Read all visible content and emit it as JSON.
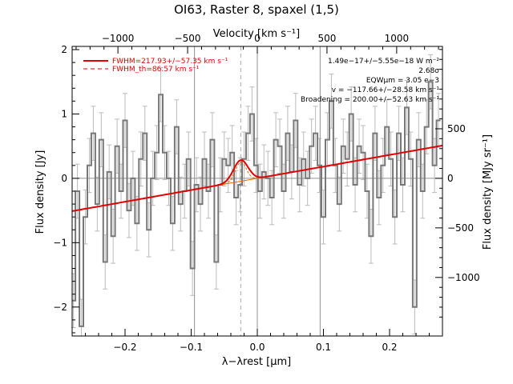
{
  "chart_data": {
    "type": "line",
    "title": "OI63, Raster 8, spaxel (1,5)",
    "xlabel": "λ−λrest [μm]",
    "ylabel": "Flux density [Jy]",
    "x2label": "Velocity [km s⁻¹]",
    "y2label": "Flux density [MJy sr⁻¹]",
    "xlim": [
      -0.28,
      0.28
    ],
    "ylim": [
      -2.45,
      2.05
    ],
    "x_ticks": [
      -0.2,
      -0.1,
      0.0,
      0.1,
      0.2
    ],
    "x_tick_labels": [
      "−0.2",
      "−0.1",
      "0.0",
      "0.1",
      "0.2"
    ],
    "y_ticks": [
      -2,
      -1,
      0,
      1,
      2
    ],
    "y_tick_labels": [
      "−2",
      "−1",
      "0",
      "1",
      "2"
    ],
    "x2_ticks": [
      -1000,
      -500,
      0,
      500,
      1000
    ],
    "x2_tick_labels": [
      "−1000",
      "−500",
      "0",
      "500",
      "1000"
    ],
    "y2_ticks": [
      -1000,
      -500,
      0,
      500
    ],
    "y2_tick_labels": [
      "−1000",
      "−500",
      "0",
      "500"
    ],
    "vlines": [
      -0.095,
      0.0,
      0.095
    ],
    "dashed_vline": -0.025,
    "legend": [
      {
        "label": "FWHM=217.93+/−57.35 km s⁻¹",
        "style": "solid",
        "color": "#e00000"
      },
      {
        "label": "FWHM_th=86.57 km s⁻¹",
        "style": "dashed",
        "color": "#e00000"
      }
    ],
    "annotations": [
      "1.49e−17+/−5.55e−18 W m⁻²",
      "2.68σ",
      "EQWμm = 3.05 e−3",
      "v = −117.66+/−28.58 km s⁻¹",
      "Broadening = 200.00+/−52.63 km s⁻¹"
    ],
    "series": [
      {
        "name": "Spectrum",
        "color": "#777777",
        "style": "steps",
        "x": [
          -0.278,
          -0.272,
          -0.266,
          -0.26,
          -0.254,
          -0.248,
          -0.242,
          -0.236,
          -0.23,
          -0.224,
          -0.218,
          -0.212,
          -0.206,
          -0.2,
          -0.194,
          -0.188,
          -0.182,
          -0.176,
          -0.17,
          -0.164,
          -0.158,
          -0.152,
          -0.146,
          -0.14,
          -0.134,
          -0.128,
          -0.122,
          -0.116,
          -0.11,
          -0.104,
          -0.098,
          -0.092,
          -0.086,
          -0.08,
          -0.074,
          -0.068,
          -0.062,
          -0.056,
          -0.05,
          -0.044,
          -0.038,
          -0.032,
          -0.026,
          -0.02,
          -0.014,
          -0.008,
          -0.002,
          0.004,
          0.01,
          0.016,
          0.022,
          0.028,
          0.034,
          0.04,
          0.046,
          0.052,
          0.058,
          0.064,
          0.07,
          0.076,
          0.082,
          0.088,
          0.094,
          0.1,
          0.106,
          0.112,
          0.118,
          0.124,
          0.13,
          0.136,
          0.142,
          0.148,
          0.154,
          0.16,
          0.166,
          0.172,
          0.178,
          0.184,
          0.19,
          0.196,
          0.202,
          0.208,
          0.214,
          0.22,
          0.226,
          0.232,
          0.238,
          0.244,
          0.25,
          0.256,
          0.262,
          0.268,
          0.274
        ],
        "y": [
          -1.9,
          -0.2,
          -2.3,
          -0.6,
          0.2,
          0.7,
          -0.4,
          0.6,
          -1.3,
          0.1,
          -0.9,
          0.5,
          -0.2,
          0.9,
          -0.5,
          0.0,
          -0.7,
          0.3,
          0.7,
          -0.8,
          0.0,
          0.4,
          1.3,
          0.4,
          0.0,
          -0.7,
          0.8,
          -0.4,
          -0.2,
          0.3,
          -1.4,
          -0.1,
          -0.4,
          0.3,
          -0.2,
          0.6,
          -1.3,
          -0.1,
          0.3,
          0.2,
          0.4,
          -0.3,
          -0.1,
          0.3,
          0.7,
          1.0,
          0.2,
          -0.2,
          0.1,
          0.0,
          -0.3,
          0.6,
          0.5,
          -0.2,
          0.7,
          0.1,
          0.9,
          -0.1,
          0.3,
          0.0,
          0.5,
          0.7,
          0.2,
          -0.6,
          0.6,
          1.2,
          0.2,
          -0.4,
          0.5,
          0.3,
          1.0,
          -0.1,
          0.5,
          0.4,
          -0.2,
          -0.9,
          0.7,
          -0.3,
          0.2,
          0.8,
          0.3,
          -0.6,
          0.7,
          -0.1,
          1.1,
          0.3,
          -2.0,
          0.6,
          -0.2,
          0.8,
          1.5,
          0.2,
          0.9
        ],
        "yerr": 0.42
      },
      {
        "name": "Model (continuum + Gaussian)",
        "color": "#e00000",
        "style": "line",
        "slope": 1.82,
        "intercept": 0.0,
        "gauss_amp": 0.33,
        "gauss_center": -0.025,
        "gauss_sigma": 0.011
      }
    ]
  }
}
